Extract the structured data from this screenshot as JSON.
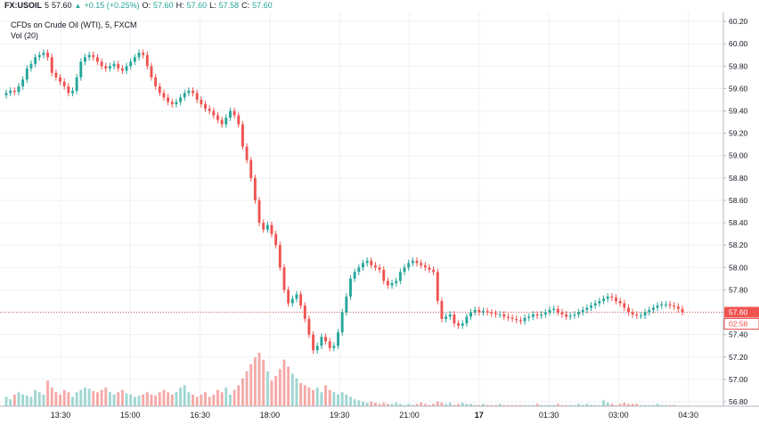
{
  "header": {
    "symbol": "FX:USOIL",
    "interval": "5",
    "last": "57.60",
    "change": "+0.15 (+0.25%)",
    "open_label": "O:",
    "open": "57.60",
    "high_label": "H:",
    "high": "57.60",
    "low_label": "L:",
    "low": "57.58",
    "close_label": "C:",
    "close": "57.60",
    "up_arrow_icon": "triangle-up-icon"
  },
  "legend": {
    "series_title": "CFDs on Crude Oil (WTI), 5, FXCM",
    "volume_title": "Vol (20)"
  },
  "price_marker": {
    "price": "57.60",
    "countdown": "02:58",
    "color": "#ef5350"
  },
  "colors": {
    "up": "#26a69a",
    "down": "#ef5350",
    "up_volume": "#9fd6d2",
    "down_volume": "#f5a9a7",
    "grid": "#eef0f3",
    "axis": "#b2b5be"
  },
  "chart_data": {
    "type": "candlestick",
    "title": "CFDs on Crude Oil (WTI), 5, FXCM",
    "y_ticks": [
      "60.20",
      "60.00",
      "59.80",
      "59.60",
      "59.40",
      "59.20",
      "59.00",
      "58.80",
      "58.60",
      "58.40",
      "58.20",
      "58.00",
      "57.80",
      "57.60",
      "57.40",
      "57.20",
      "57.00",
      "56.80"
    ],
    "ylim": [
      56.76,
      60.28
    ],
    "x_ticks": [
      "13:30",
      "15:00",
      "16:30",
      "18:00",
      "19:30",
      "21:00",
      "17",
      "01:30",
      "03:00",
      "04:30"
    ],
    "x_tick_bold": [
      false,
      false,
      false,
      false,
      false,
      false,
      true,
      false,
      false,
      false
    ],
    "grid": true,
    "close_series": [
      59.56,
      59.58,
      59.57,
      59.62,
      59.68,
      59.78,
      59.82,
      59.88,
      59.9,
      59.92,
      59.88,
      59.74,
      59.7,
      59.66,
      59.62,
      59.56,
      59.58,
      59.7,
      59.84,
      59.88,
      59.9,
      59.88,
      59.84,
      59.8,
      59.78,
      59.8,
      59.82,
      59.78,
      59.76,
      59.8,
      59.84,
      59.88,
      59.92,
      59.9,
      59.8,
      59.7,
      59.62,
      59.56,
      59.52,
      59.48,
      59.46,
      59.48,
      59.52,
      59.56,
      59.58,
      59.56,
      59.5,
      59.46,
      59.42,
      59.4,
      59.36,
      59.32,
      59.28,
      59.34,
      59.4,
      59.36,
      59.28,
      59.08,
      58.96,
      58.8,
      58.6,
      58.4,
      58.34,
      58.38,
      58.3,
      58.2,
      58.0,
      57.8,
      57.68,
      57.72,
      57.76,
      57.66,
      57.54,
      57.4,
      57.26,
      57.3,
      57.38,
      57.34,
      57.28,
      57.3,
      57.42,
      57.6,
      57.74,
      57.9,
      57.96,
      58.0,
      58.04,
      58.06,
      58.02,
      58.0,
      57.98,
      57.88,
      57.84,
      57.86,
      57.88,
      57.96,
      58.0,
      58.04,
      58.06,
      58.04,
      58.02,
      58.0,
      57.98,
      57.96,
      57.7,
      57.54,
      57.56,
      57.58,
      57.5,
      57.48,
      57.5,
      57.56,
      57.6,
      57.62,
      57.6,
      57.61,
      57.6,
      57.59,
      57.58,
      57.58,
      57.56,
      57.55,
      57.54,
      57.53,
      57.52,
      57.55,
      57.56,
      57.58,
      57.57,
      57.58,
      57.6,
      57.62,
      57.63,
      57.6,
      57.58,
      57.56,
      57.57,
      57.58,
      57.6,
      57.62,
      57.64,
      57.66,
      57.68,
      57.7,
      57.72,
      57.74,
      57.73,
      57.7,
      57.68,
      57.64,
      57.6,
      57.58,
      57.57,
      57.57,
      57.6,
      57.62,
      57.64,
      57.66,
      57.67,
      57.67,
      57.66,
      57.65,
      57.63,
      57.6
    ],
    "volume_series": [
      8,
      6,
      10,
      12,
      10,
      9,
      8,
      14,
      12,
      10,
      22,
      16,
      12,
      10,
      14,
      12,
      8,
      12,
      14,
      16,
      15,
      13,
      12,
      14,
      16,
      12,
      10,
      12,
      14,
      11,
      10,
      8,
      9,
      10,
      12,
      10,
      9,
      12,
      14,
      12,
      10,
      12,
      16,
      18,
      12,
      10,
      8,
      10,
      12,
      8,
      10,
      14,
      12,
      16,
      10,
      14,
      18,
      24,
      30,
      36,
      42,
      46,
      40,
      30,
      22,
      26,
      32,
      40,
      34,
      28,
      24,
      20,
      18,
      16,
      14,
      16,
      12,
      18,
      14,
      12,
      10,
      12,
      10,
      8,
      6,
      5,
      4,
      3,
      4,
      3,
      2,
      3,
      2,
      2,
      3,
      2,
      1,
      2,
      1,
      2,
      3,
      2,
      1,
      2,
      4,
      3,
      2,
      3,
      1,
      2,
      3,
      2,
      2,
      1,
      1,
      2,
      1,
      1,
      1,
      2,
      1,
      1,
      1,
      1,
      1,
      1,
      1,
      1,
      2,
      1,
      1,
      1,
      1,
      2,
      1,
      1,
      1,
      1,
      2,
      1,
      2,
      1,
      1,
      1,
      5,
      3,
      2,
      1,
      2,
      3,
      2,
      2,
      2,
      1,
      1,
      1,
      1,
      2,
      1,
      1,
      1,
      1
    ]
  }
}
